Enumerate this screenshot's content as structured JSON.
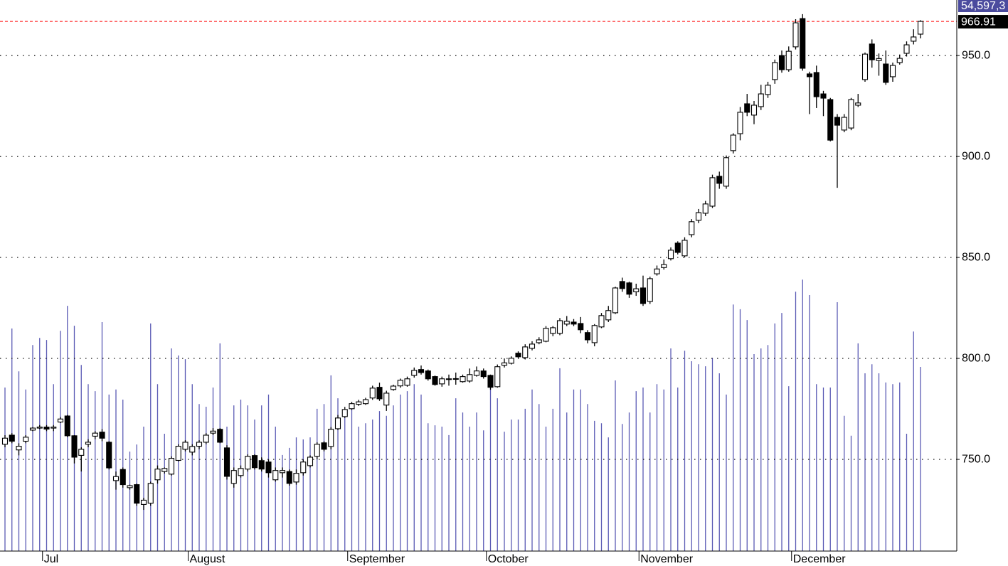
{
  "chart_data": {
    "type": "candlestick",
    "categories": [
      null,
      null,
      null,
      null,
      null,
      "Jul",
      null,
      null,
      null,
      null,
      null,
      null,
      null,
      null,
      null,
      null,
      null,
      null,
      null,
      null,
      null,
      null,
      null,
      null,
      null,
      null,
      "August",
      null,
      null,
      null,
      null,
      null,
      null,
      null,
      null,
      null,
      null,
      null,
      null,
      null,
      null,
      null,
      null,
      null,
      null,
      null,
      null,
      null,
      null,
      "September",
      null,
      null,
      null,
      null,
      null,
      null,
      null,
      null,
      null,
      null,
      null,
      null,
      null,
      null,
      null,
      null,
      null,
      null,
      null,
      "October",
      null,
      null,
      null,
      null,
      null,
      null,
      null,
      null,
      null,
      null,
      null,
      null,
      null,
      null,
      null,
      null,
      null,
      null,
      null,
      null,
      null,
      "November",
      null,
      null,
      null,
      null,
      null,
      null,
      null,
      null,
      null,
      null,
      null,
      null,
      null,
      null,
      null,
      null,
      null,
      null,
      null,
      null,
      null,
      "December",
      null,
      null,
      null,
      null,
      null,
      null,
      null,
      null,
      null,
      null,
      null,
      null,
      null,
      null,
      null,
      null,
      null,
      null,
      null
    ],
    "open": [
      757.5,
      762,
      754.7,
      759,
      764.5,
      765.5,
      766,
      765.5,
      768.5,
      771.5,
      761.7,
      752,
      757.5,
      761.5,
      763.5,
      758.5,
      739.5,
      745,
      736,
      737.5,
      727.7,
      728.3,
      739.9,
      744,
      742.7,
      749.5,
      755,
      753.6,
      756.5,
      758.5,
      763,
      764.9,
      755.7,
      738.1,
      742,
      745.2,
      751.9,
      749.4,
      748.7,
      739.9,
      743.4,
      744,
      738.8,
      743.4,
      746.9,
      751.5,
      758.2,
      756.4,
      765.2,
      771.2,
      775.1,
      777.3,
      777.6,
      780.4,
      785.7,
      776.9,
      784.6,
      786.4,
      786.7,
      791.6,
      794.5,
      793.8,
      791,
      787.4,
      789.7,
      789.9,
      788.5,
      788.8,
      791.6,
      793.8,
      791.6,
      786,
      796.6,
      797.6,
      802.6,
      800.4,
      805,
      807.8,
      808.5,
      812.4,
      812.4,
      817,
      818,
      817.3,
      812.8,
      807.8,
      815.6,
      819.1,
      822.6,
      838.1,
      837.4,
      833,
      834.9,
      828.2,
      841.9,
      845,
      849.4,
      857.1,
      850.8,
      861.3,
      868.4,
      871.9,
      875.4,
      890.2,
      885.3,
      902.9,
      911.3,
      926.1,
      920.5,
      924.7,
      930.7,
      938.1,
      950,
      943,
      954.3,
      968.3,
      940.9,
      941.6,
      931,
      928.2,
      919.4,
      913.1,
      914.1,
      925.4,
      938.1,
      955.7,
      947.5,
      945.8,
      939.5,
      946.5,
      951.1,
      957.1,
      960.6
    ],
    "high": [
      762,
      763,
      758,
      762,
      766,
      767,
      767,
      767,
      771,
      772,
      762,
      756,
      760,
      764,
      765,
      759,
      744,
      746,
      737.5,
      738,
      731,
      739,
      747,
      746,
      751.5,
      757.5,
      759.5,
      757.5,
      759.5,
      763,
      765.5,
      765.5,
      757,
      746,
      747,
      752.5,
      752.5,
      751,
      750,
      746,
      746,
      745,
      745,
      750,
      752,
      758.5,
      759,
      766,
      772,
      776,
      778.5,
      779.5,
      780.5,
      786.5,
      788,
      784,
      787,
      790,
      791,
      795.5,
      796.5,
      794.5,
      791.5,
      791,
      792,
      793,
      792,
      795,
      796,
      795,
      792,
      797,
      800,
      801,
      803.5,
      807,
      808.5,
      810.5,
      816,
      816,
      820,
      821,
      819.5,
      820.5,
      814,
      817,
      822.5,
      826,
      835.5,
      840,
      838,
      837,
      841,
      840.5,
      846,
      849,
      855,
      858,
      860,
      869,
      874,
      878,
      891,
      892.5,
      900.5,
      911.5,
      924.5,
      931,
      927.5,
      935.5,
      937,
      948,
      952.5,
      954.5,
      968,
      970.5,
      942,
      945,
      932.5,
      929,
      921,
      921,
      929,
      931,
      951.5,
      958,
      951,
      952.5,
      946.5,
      950.5,
      957,
      963,
      967.5
    ],
    "low": [
      756,
      758,
      752,
      758,
      764,
      765,
      764,
      764,
      768,
      761,
      748,
      744,
      756,
      760,
      759,
      745,
      735,
      736,
      735,
      727,
      725,
      727,
      738,
      743,
      742,
      749,
      754,
      752,
      755,
      757.5,
      762,
      758,
      740,
      736,
      741,
      744,
      745,
      744,
      741,
      739,
      741,
      737,
      737.5,
      742,
      746,
      750,
      754,
      755,
      764.5,
      770.5,
      774.5,
      776.5,
      777,
      779.5,
      779,
      774,
      784,
      785.5,
      786,
      790.5,
      792,
      789,
      786.5,
      786,
      786.5,
      787,
      788,
      788,
      791,
      790,
      784.5,
      785.5,
      795.5,
      797,
      800,
      799.5,
      804,
      807,
      808,
      811,
      811.5,
      816,
      816,
      812.5,
      807.5,
      806,
      815,
      818,
      822,
      833,
      830,
      831,
      826,
      827,
      841,
      844,
      848.5,
      851.5,
      850,
      860,
      867,
      870.5,
      874.5,
      884,
      884,
      901.5,
      908,
      920,
      916,
      923,
      929,
      936,
      941.5,
      942,
      953,
      942.5,
      921,
      924,
      920,
      907.5,
      884.5,
      912,
      913,
      924.5,
      937,
      944,
      940,
      935.5,
      937,
      945.5,
      949.5,
      955.5,
      958.5
    ],
    "close": [
      760.5,
      759,
      756.5,
      761,
      765.5,
      766,
      765,
      766,
      770,
      761.7,
      751.1,
      755,
      758.5,
      763,
      760.5,
      745.8,
      741.5,
      737.5,
      737,
      728.3,
      729.8,
      738.1,
      745.2,
      745.5,
      750.5,
      756.5,
      758.5,
      756.4,
      758.5,
      762,
      764,
      758.5,
      741.6,
      744.5,
      745.5,
      751.5,
      745.9,
      745.2,
      743.4,
      744.5,
      744.5,
      738.1,
      743.1,
      748.7,
      751.1,
      757.5,
      755,
      764.9,
      770.5,
      774.7,
      777.6,
      778.5,
      779.6,
      785.3,
      780,
      782.8,
      786.3,
      789.2,
      789.9,
      794.1,
      793,
      789.9,
      787.1,
      789.9,
      789.9,
      790,
      791,
      792,
      793.8,
      791,
      785.7,
      795.9,
      797.8,
      800.1,
      800.8,
      805.7,
      807.1,
      809.2,
      814.9,
      815.2,
      818.7,
      818.4,
      817,
      814.2,
      809.2,
      816.3,
      821.2,
      823.7,
      834.9,
      834.6,
      831.8,
      834.5,
      827.2,
      839.5,
      844.3,
      846.5,
      853.6,
      852.5,
      858.5,
      867.7,
      872.2,
      876.5,
      889.5,
      886.7,
      899.4,
      910.6,
      921.9,
      921.9,
      925.4,
      931,
      935.3,
      946.5,
      943,
      952.1,
      966.2,
      943.7,
      939.5,
      929.6,
      928.9,
      908.1,
      915.5,
      919.4,
      928.2,
      926.5,
      950.7,
      947.9,
      948.5,
      936.7,
      945.1,
      948.6,
      955.3,
      959.2,
      966.91
    ],
    "volume": [
      48.5,
      66.0,
      53.3,
      47.9,
      61.1,
      63.2,
      62.6,
      49.5,
      65.3,
      72.7,
      66.8,
      55.2,
      49.5,
      47.4,
      67.9,
      46.4,
      47.9,
      44.9,
      29.5,
      31.6,
      36.9,
      67.5,
      49.5,
      34.8,
      60.1,
      58.0,
      56.9,
      49.5,
      43.6,
      42.8,
      48.5,
      61.6,
      36.9,
      43.2,
      44.9,
      43.2,
      39.0,
      43.2,
      46.4,
      36.9,
      28.5,
      30.6,
      33.7,
      33.1,
      33.7,
      42.2,
      43.6,
      52.1,
      45.3,
      40.7,
      42.2,
      36.9,
      37.9,
      39.0,
      41.5,
      40.1,
      43.2,
      46.4,
      47.4,
      49.5,
      46.4,
      37.9,
      37.3,
      36.9,
      34.4,
      45.3,
      41.1,
      36.9,
      41.1,
      35.8,
      49.1,
      45.3,
      35.4,
      39.0,
      39.0,
      42.2,
      47.9,
      43.6,
      36.9,
      42.2,
      54.2,
      41.1,
      47.9,
      47.9,
      43.6,
      38.6,
      37.9,
      33.7,
      50.6,
      37.7,
      41.1,
      47.4,
      48.5,
      41.1,
      49.5,
      47.9,
      60.1,
      48.5,
      59.4,
      56.3,
      55.4,
      54.8,
      57.3,
      52.7,
      46.4,
      73.1,
      71.7,
      68.5,
      58.4,
      60.1,
      61.1,
      67.5,
      70.6,
      48.9,
      76.9,
      80.5,
      75.9,
      49.5,
      48.5,
      48.5,
      73.8,
      40.1,
      34.2,
      61.6,
      52.7,
      55.4,
      52.7,
      50.0,
      49.5,
      50.0,
      34.8,
      65.1,
      54.5973
    ],
    "last_close_label": "966.91",
    "last_volume_label": "54,597,3",
    "ylim": [
      704.6,
      977.5
    ],
    "yticks": [
      {
        "value": 750,
        "label": "750.0"
      },
      {
        "value": 800,
        "label": "800.0"
      },
      {
        "value": 850,
        "label": "850.0"
      },
      {
        "value": 900,
        "label": "900.0"
      },
      {
        "value": 950,
        "label": "950.0"
      }
    ],
    "volume_lim": [
      0,
      163.4
    ],
    "grid": true,
    "up_color": "#ffffff",
    "down_color": "#000000",
    "volume_color": "#5a5ab4",
    "last_line_color": "#ff0000"
  }
}
